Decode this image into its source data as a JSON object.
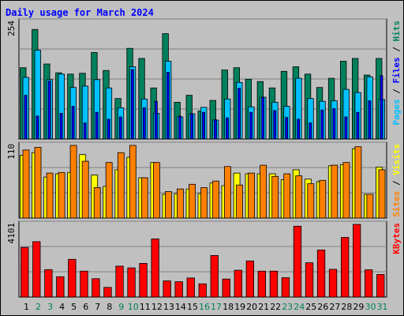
{
  "title": "Daily usage for March 2024",
  "colors": {
    "bg": "#c0c0c0",
    "panel": "#c0c0c0",
    "hits": "#00805c",
    "files": "#00c0ff",
    "pages": "#0000ff",
    "visits": "#ffff00",
    "sites": "#ff8000",
    "kbytes": "#ff0000",
    "title": "#0000ff",
    "weekday": "#000000",
    "weekend": "#00805c"
  },
  "legend_right": {
    "top": [
      {
        "text": "Pages",
        "color": "#00c0ff"
      },
      {
        "text": " / ",
        "color": "#000000"
      },
      {
        "text": "Files",
        "color": "#0000ff"
      },
      {
        "text": " / ",
        "color": "#000000"
      },
      {
        "text": "Hits",
        "color": "#00805c"
      }
    ],
    "middle": [
      {
        "text": "Sites",
        "color": "#ff8000"
      },
      {
        "text": " / ",
        "color": "#000000"
      },
      {
        "text": "Visits",
        "color": "#ffff00"
      }
    ],
    "bottom": [
      {
        "text": "KBytes",
        "color": "#ff0000"
      }
    ]
  },
  "chart_data": [
    {
      "type": "bar",
      "title": "Daily usage for March 2024",
      "ylabel_max": "254",
      "ylim": [
        0,
        254
      ],
      "categories": [
        "1",
        "2",
        "3",
        "4",
        "5",
        "6",
        "7",
        "8",
        "9",
        "10",
        "11",
        "12",
        "13",
        "14",
        "15",
        "16",
        "17",
        "18",
        "19",
        "20",
        "21",
        "22",
        "23",
        "24",
        "25",
        "26",
        "27",
        "28",
        "29",
        "30",
        "31"
      ],
      "weekend_days": [
        "2",
        "3",
        "9",
        "10",
        "16",
        "17",
        "23",
        "24",
        "30",
        "31"
      ],
      "series": [
        {
          "name": "Hits",
          "values": [
            155,
            238,
            163,
            144,
            141,
            143,
            188,
            149,
            88,
            197,
            175,
            111,
            229,
            80,
            95,
            61,
            84,
            150,
            155,
            130,
            125,
            111,
            147,
            157,
            141,
            112,
            132,
            169,
            175,
            139,
            175
          ]
        },
        {
          "name": "Files",
          "values": [
            134,
            193,
            129,
            141,
            112,
            115,
            129,
            111,
            68,
            157,
            87,
            56,
            169,
            48,
            55,
            69,
            41,
            87,
            123,
            70,
            91,
            80,
            71,
            132,
            88,
            82,
            83,
            108,
            101,
            135,
            86
          ]
        },
        {
          "name": "Pages",
          "values": [
            95,
            50,
            126,
            56,
            71,
            35,
            58,
            43,
            48,
            151,
            68,
            82,
            145,
            50,
            55,
            58,
            42,
            46,
            110,
            58,
            91,
            62,
            47,
            43,
            35,
            63,
            66,
            48,
            58,
            83,
            138
          ]
        }
      ]
    },
    {
      "type": "bar",
      "ylabel_max": "110",
      "ylim": [
        0,
        110
      ],
      "categories": [
        "1",
        "2",
        "3",
        "4",
        "5",
        "6",
        "7",
        "8",
        "9",
        "10",
        "11",
        "12",
        "13",
        "14",
        "15",
        "16",
        "17",
        "18",
        "19",
        "20",
        "21",
        "22",
        "23",
        "24",
        "25",
        "26",
        "27",
        "28",
        "29",
        "30",
        "31"
      ],
      "series": [
        {
          "name": "Visits",
          "values": [
            95,
            99,
            62,
            67,
            69,
            96,
            65,
            48,
            73,
            92,
            61,
            84,
            36,
            37,
            44,
            37,
            53,
            49,
            68,
            67,
            67,
            67,
            58,
            73,
            59,
            55,
            79,
            81,
            105,
            36,
            77
          ]
        },
        {
          "name": "Sites",
          "values": [
            103,
            107,
            68,
            69,
            111,
            86,
            46,
            84,
            99,
            111,
            61,
            84,
            40,
            44,
            51,
            46,
            56,
            78,
            50,
            68,
            80,
            63,
            67,
            64,
            52,
            57,
            80,
            84,
            108,
            36,
            73
          ]
        }
      ]
    },
    {
      "type": "bar",
      "ylabel_max": "4101",
      "ylim": [
        0,
        4101
      ],
      "categories": [
        "1",
        "2",
        "3",
        "4",
        "5",
        "6",
        "7",
        "8",
        "9",
        "10",
        "11",
        "12",
        "13",
        "14",
        "15",
        "16",
        "17",
        "18",
        "19",
        "20",
        "21",
        "22",
        "23",
        "24",
        "25",
        "26",
        "27",
        "28",
        "29",
        "30",
        "31"
      ],
      "series": [
        {
          "name": "KBytes",
          "values": [
            2800,
            3127,
            1545,
            1145,
            2127,
            1464,
            1036,
            545,
            1745,
            1645,
            1900,
            3282,
            909,
            864,
            1073,
            745,
            2345,
            1018,
            1509,
            2036,
            1464,
            1464,
            1091,
            4000,
            1936,
            2655,
            1564,
            3364,
            4145,
            1536,
            1273
          ]
        }
      ]
    }
  ]
}
